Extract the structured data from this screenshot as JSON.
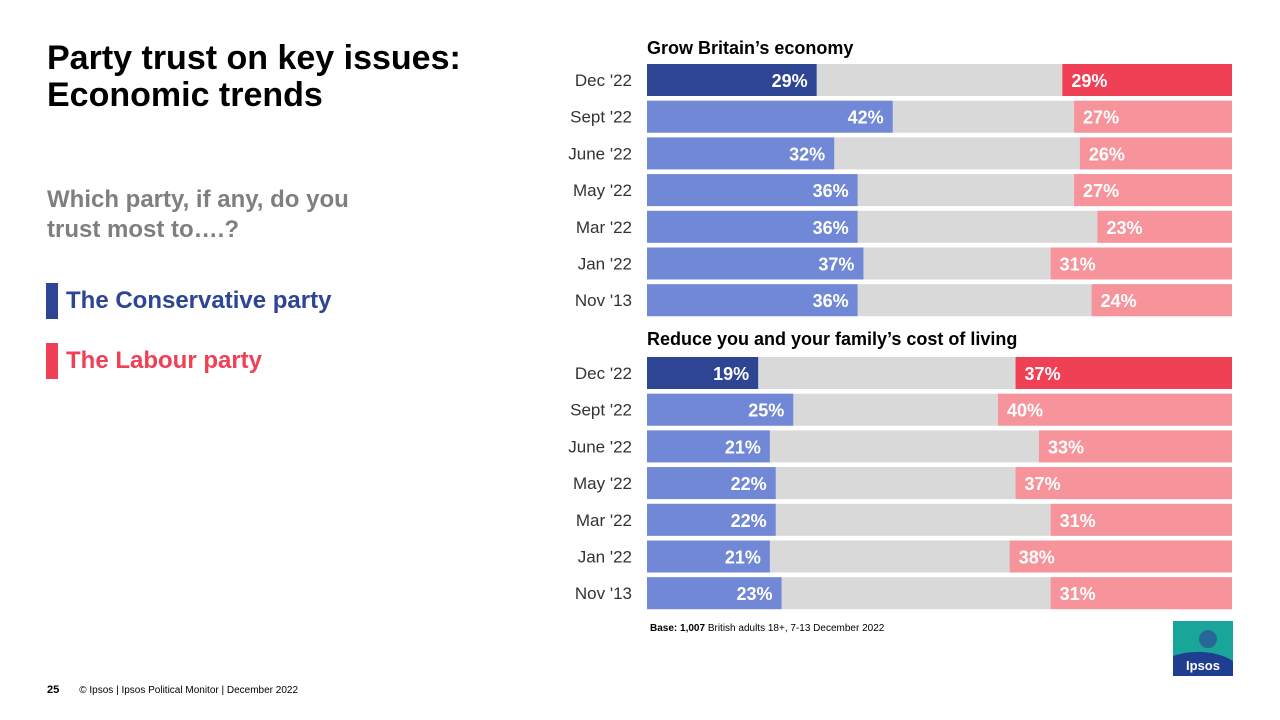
{
  "title": "Party trust on key issues: Economic trends",
  "subtitle": "Which party, if any, do you trust most to….?",
  "legend": [
    {
      "label": "The Conservative party",
      "color": "#2e4593"
    },
    {
      "label": "The Labour party",
      "color": "#ef4055"
    }
  ],
  "colors": {
    "con_current": "#2e4593",
    "con_past": "#7188d6",
    "lab_current": "#ef4055",
    "lab_past": "#f7939a",
    "other": "#d9d9d9",
    "label_text": "#ffffff",
    "category_text": "#333333"
  },
  "base_note": {
    "bold": "Base: 1,007",
    "text": " British adults 18+,  7-13 December 2022"
  },
  "footer": {
    "page": "25",
    "text": "© Ipsos | Ipsos Political Monitor | December 2022"
  },
  "logo_text": "Ipsos",
  "chart_data": [
    {
      "type": "bar",
      "orientation": "horizontal-stacked",
      "title": "Grow Britain’s economy",
      "categories": [
        "Dec '22",
        "Sept '22",
        "June '22",
        "May '22",
        "Mar '22",
        "Jan '22",
        "Nov '13"
      ],
      "series": [
        {
          "name": "The Conservative party",
          "values": [
            29,
            42,
            32,
            36,
            36,
            37,
            36
          ],
          "labels": [
            "29%",
            "42%",
            "32%",
            "36%",
            "36%",
            "37%",
            "36%"
          ]
        },
        {
          "name": "The Labour party",
          "values": [
            29,
            27,
            26,
            27,
            23,
            31,
            24
          ],
          "labels": [
            "29%",
            "27%",
            "26%",
            "27%",
            "23%",
            "31%",
            "24%"
          ]
        }
      ],
      "xlim": [
        0,
        100
      ]
    },
    {
      "type": "bar",
      "orientation": "horizontal-stacked",
      "title": "Reduce you and your family’s cost of living",
      "categories": [
        "Dec '22",
        "Sept '22",
        "June '22",
        "May '22",
        "Mar '22",
        "Jan '22",
        "Nov '13"
      ],
      "series": [
        {
          "name": "The Conservative party",
          "values": [
            19,
            25,
            21,
            22,
            22,
            21,
            23
          ],
          "labels": [
            "19%",
            "25%",
            "21%",
            "22%",
            "22%",
            "21%",
            "23%"
          ]
        },
        {
          "name": "The Labour party",
          "values": [
            37,
            40,
            33,
            37,
            31,
            38,
            31
          ],
          "labels": [
            "37%",
            "40%",
            "33%",
            "37%",
            "31%",
            "38%",
            "31%"
          ]
        }
      ],
      "xlim": [
        0,
        100
      ]
    }
  ]
}
